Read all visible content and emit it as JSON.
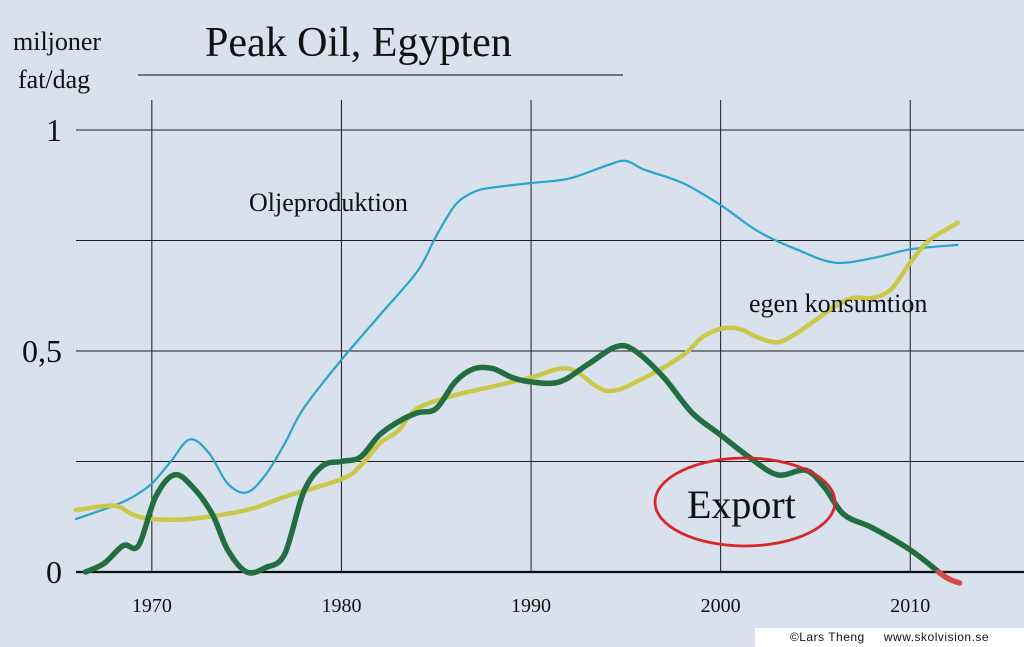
{
  "chart_data": {
    "type": "line",
    "title": "Peak Oil, Egypten",
    "ylabel_line1": "miljoner",
    "ylabel_line2": "fat/dag",
    "xlim": [
      1966,
      2016
    ],
    "ylim": [
      0,
      1
    ],
    "x_ticks": [
      1970,
      1980,
      1990,
      2000,
      2010
    ],
    "y_ticks": [
      {
        "value": 0,
        "label": "0"
      },
      {
        "value": 0.5,
        "label": "0,5"
      },
      {
        "value": 1,
        "label": "1"
      }
    ],
    "grid": true,
    "series": [
      {
        "name": "Oljeproduktion",
        "color": "#2aa3cf",
        "x": [
          1966,
          1968,
          1969,
          1970,
          1971,
          1972,
          1973,
          1974,
          1975,
          1976,
          1977,
          1978,
          1980,
          1982,
          1984,
          1985,
          1986,
          1987,
          1988,
          1990,
          1992,
          1994,
          1995,
          1996,
          1998,
          2000,
          2002,
          2004,
          2006,
          2008,
          2010,
          2012.5
        ],
        "y": [
          0.12,
          0.15,
          0.17,
          0.2,
          0.25,
          0.3,
          0.27,
          0.2,
          0.18,
          0.22,
          0.29,
          0.37,
          0.48,
          0.58,
          0.68,
          0.76,
          0.83,
          0.86,
          0.87,
          0.88,
          0.89,
          0.92,
          0.93,
          0.91,
          0.88,
          0.83,
          0.77,
          0.73,
          0.7,
          0.71,
          0.73,
          0.74
        ]
      },
      {
        "name": "egen konsumtion",
        "color": "#c9c84a",
        "x": [
          1966,
          1968,
          1969,
          1970,
          1972,
          1975,
          1977,
          1980,
          1981,
          1982,
          1983,
          1984,
          1986,
          1988,
          1990,
          1992,
          1994,
          1996,
          1998,
          1999,
          2000,
          2001,
          2002,
          2003,
          2004,
          2006,
          2007,
          2008,
          2009,
          2010,
          2011,
          2012.5
        ],
        "y": [
          0.14,
          0.15,
          0.13,
          0.12,
          0.12,
          0.14,
          0.17,
          0.21,
          0.24,
          0.29,
          0.32,
          0.37,
          0.4,
          0.42,
          0.44,
          0.46,
          0.41,
          0.44,
          0.49,
          0.53,
          0.55,
          0.55,
          0.53,
          0.52,
          0.54,
          0.6,
          0.62,
          0.62,
          0.64,
          0.7,
          0.75,
          0.79
        ]
      },
      {
        "name": "Export",
        "color": "#226e42",
        "x": [
          1966.5,
          1967.5,
          1968.5,
          1969.3,
          1970.2,
          1971.2,
          1972.2,
          1973.2,
          1974,
          1975,
          1976,
          1977,
          1978,
          1979,
          1980,
          1981,
          1982,
          1983,
          1984,
          1985,
          1986,
          1987,
          1988,
          1989,
          1990,
          1991.5,
          1993,
          1994.5,
          1995.5,
          1997,
          1998.5,
          2000,
          2001.5,
          2003,
          2004.5,
          2005.5,
          2006.5,
          2008,
          2010,
          2011.5
        ],
        "y": [
          0.0,
          0.02,
          0.06,
          0.06,
          0.17,
          0.22,
          0.19,
          0.13,
          0.05,
          0.0,
          0.01,
          0.04,
          0.18,
          0.24,
          0.25,
          0.26,
          0.31,
          0.34,
          0.36,
          0.37,
          0.43,
          0.46,
          0.46,
          0.44,
          0.43,
          0.43,
          0.47,
          0.51,
          0.5,
          0.44,
          0.36,
          0.31,
          0.26,
          0.22,
          0.23,
          0.19,
          0.13,
          0.1,
          0.05,
          0.0
        ]
      },
      {
        "name": "",
        "color": "#d64a4a",
        "x": [
          2011.5,
          2012,
          2012.6
        ],
        "y": [
          0.0,
          -0.015,
          -0.025
        ]
      }
    ],
    "annotations": [
      {
        "text": "Oljeproduktion",
        "color": "#111111"
      },
      {
        "text": "egen konsumtion",
        "color": "#111111"
      },
      {
        "text": "Export",
        "color": "#111111",
        "circle_color": "#d9262b"
      }
    ],
    "credit": "©Lars Theng     www.skolvision.se"
  }
}
